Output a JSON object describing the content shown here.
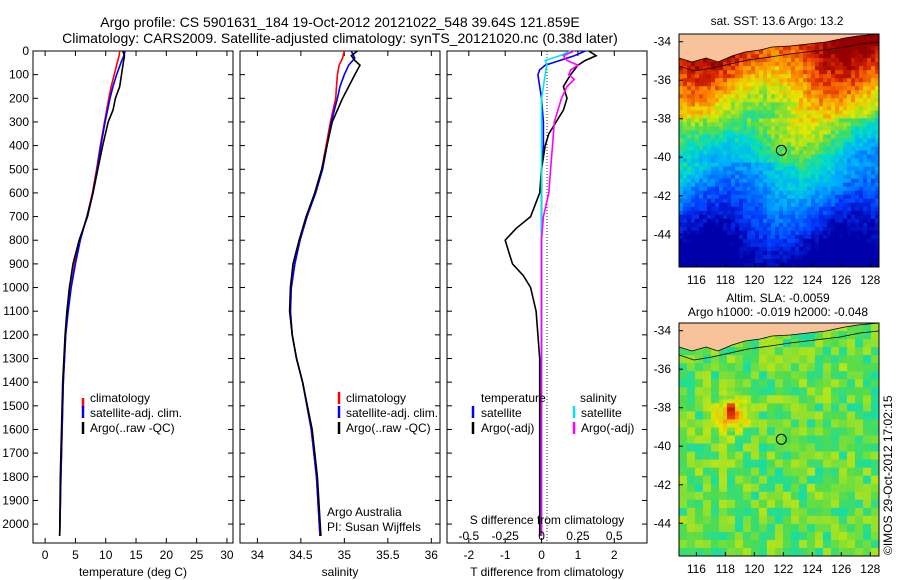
{
  "title_line1": "Argo profile: CS 5901631_184 19-Oct-2012 20121022_548 39.64S 121.859E",
  "title_line2": "Climatology: CARS2009. Satellite-adjusted climatology: synTS_20121020.nc (0.38d later)",
  "colors": {
    "climatology": "#ff0000",
    "satellite": "#0000ff",
    "argo": "#000000",
    "sat_s": "#00e5ee",
    "argo_s": "#ff00ff",
    "land": "#f8c29a"
  },
  "chart_data": [
    {
      "id": "temperature",
      "type": "line",
      "xlabel": "temperature (deg C)",
      "xlim": [
        -2,
        31
      ],
      "xticks": [
        0,
        5,
        10,
        15,
        20,
        25,
        30
      ],
      "ylim": [
        2080,
        0
      ],
      "yticks": [
        0,
        100,
        200,
        300,
        400,
        500,
        600,
        700,
        800,
        900,
        1000,
        1100,
        1200,
        1300,
        1400,
        1500,
        1600,
        1700,
        1800,
        1900,
        2000
      ],
      "legend": [
        "climatology",
        "satellite-adj. clim.",
        "Argo(..raw -QC)"
      ],
      "series": [
        {
          "name": "climatology",
          "color": "#ff0000",
          "y": [
            0,
            20,
            50,
            100,
            150,
            200,
            300,
            400,
            500,
            600,
            700,
            800,
            900,
            1000,
            1100,
            1200,
            1300,
            1400,
            1600,
            1800,
            2050
          ],
          "x": [
            12.3,
            12.2,
            11.9,
            11.4,
            10.9,
            10.5,
            9.8,
            9.1,
            8.5,
            7.8,
            6.9,
            5.7,
            4.9,
            4.2,
            3.7,
            3.4,
            3.2,
            3.0,
            2.8,
            2.6,
            2.4
          ]
        },
        {
          "name": "satellite-adj. clim.",
          "color": "#0000ff",
          "y": [
            0,
            20,
            50,
            100,
            150,
            200,
            300,
            400,
            500,
            600,
            700,
            800,
            900,
            1000,
            1100,
            1200,
            1300,
            1400,
            1600,
            1800,
            2050
          ],
          "x": [
            13.2,
            13.0,
            12.5,
            11.8,
            11.2,
            10.7,
            9.9,
            9.2,
            8.6,
            7.9,
            6.9,
            5.8,
            5.0,
            4.3,
            3.8,
            3.4,
            3.2,
            3.0,
            2.8,
            2.6,
            2.4
          ]
        },
        {
          "name": "Argo(..raw -QC)",
          "color": "#000000",
          "y": [
            0,
            20,
            50,
            100,
            150,
            200,
            250,
            300,
            400,
            500,
            600,
            700,
            800,
            900,
            1000,
            1100,
            1200,
            1300,
            1400,
            1600,
            1800,
            2050
          ],
          "x": [
            12.8,
            13.1,
            12.9,
            12.6,
            12.3,
            11.6,
            11.2,
            10.4,
            9.5,
            8.7,
            7.9,
            7.0,
            5.6,
            4.6,
            4.0,
            3.6,
            3.3,
            3.1,
            2.9,
            2.7,
            2.5,
            2.4
          ]
        }
      ]
    },
    {
      "id": "salinity",
      "type": "line",
      "xlabel": "salinity",
      "xlim": [
        33.8,
        36.1
      ],
      "xticks": [
        34,
        34.5,
        35,
        35.5,
        36
      ],
      "ylim": [
        2080,
        0
      ],
      "legend": [
        "climatology",
        "satellite-adj. clim.",
        "Argo(..raw -QC)"
      ],
      "annotation": [
        "Argo Australia",
        "PI: Susan Wijffels"
      ],
      "series": [
        {
          "name": "climatology",
          "color": "#ff0000",
          "y": [
            0,
            30,
            60,
            100,
            150,
            200,
            300,
            400,
            500,
            600,
            700,
            800,
            900,
            1000,
            1100,
            1200,
            1300,
            1400,
            1600,
            1800,
            2050
          ],
          "x": [
            35.0,
            34.98,
            34.94,
            34.92,
            34.91,
            34.9,
            34.84,
            34.79,
            34.74,
            34.66,
            34.57,
            34.49,
            34.43,
            34.39,
            34.38,
            34.4,
            34.45,
            34.52,
            34.62,
            34.68,
            34.72
          ]
        },
        {
          "name": "satellite-adj. clim.",
          "color": "#0000ff",
          "y": [
            0,
            30,
            60,
            100,
            150,
            200,
            300,
            400,
            500,
            600,
            700,
            800,
            900,
            1000,
            1100,
            1200,
            1300,
            1400,
            1600,
            1800,
            2050
          ],
          "x": [
            35.08,
            35.12,
            35.05,
            35.0,
            34.95,
            34.92,
            34.85,
            34.8,
            34.75,
            34.67,
            34.57,
            34.49,
            34.43,
            34.39,
            34.38,
            34.4,
            34.45,
            34.52,
            34.62,
            34.68,
            34.72
          ]
        },
        {
          "name": "Argo(..raw -QC)",
          "color": "#000000",
          "y": [
            0,
            20,
            40,
            60,
            80,
            100,
            150,
            200,
            250,
            300,
            400,
            500,
            600,
            700,
            800,
            900,
            1000,
            1100,
            1200,
            1300,
            1400,
            1600,
            1800,
            2050
          ],
          "x": [
            35.15,
            35.08,
            35.12,
            35.18,
            35.15,
            35.12,
            35.05,
            34.98,
            34.92,
            34.86,
            34.8,
            34.74,
            34.66,
            34.56,
            34.48,
            34.41,
            34.38,
            34.37,
            34.4,
            34.45,
            34.52,
            34.63,
            34.69,
            34.73
          ]
        }
      ]
    },
    {
      "id": "difference",
      "type": "line",
      "xlabel": "T difference from climatology",
      "xlabel_top": "S difference from climatology",
      "xlim": [
        -2.6,
        2.9
      ],
      "xticks": [
        -2,
        -1,
        0,
        1,
        2
      ],
      "top_ticks": [
        "-0.5",
        "-0.25",
        "0",
        "0.25",
        "0.5"
      ],
      "ylim": [
        2080,
        0
      ],
      "legend_headers": [
        "temperature",
        "salinity"
      ],
      "legend": [
        "satellite",
        "Argo(-adj)",
        "satellite",
        "Argo(-adj)"
      ],
      "series": [
        {
          "name": "T satellite",
          "color": "#0000ff",
          "y": [
            0,
            20,
            40,
            60,
            80,
            100,
            150,
            200,
            300,
            400,
            500,
            600,
            700,
            800,
            900,
            1000,
            1200,
            1500,
            1800,
            2050
          ],
          "x": [
            1.2,
            0.9,
            0.5,
            0.1,
            -0.05,
            -0.1,
            -0.05,
            0.0,
            0.05,
            0.05,
            0.0,
            0.0,
            0.0,
            0.0,
            0.0,
            0.0,
            0.0,
            0.0,
            0.0,
            0.0
          ]
        },
        {
          "name": "T Argo(-adj)",
          "color": "#000000",
          "y": [
            0,
            20,
            40,
            60,
            80,
            100,
            150,
            200,
            250,
            300,
            350,
            400,
            500,
            600,
            700,
            750,
            800,
            850,
            900,
            950,
            1000,
            1100,
            1200,
            1300,
            1500,
            1800,
            2050
          ],
          "x": [
            1.3,
            1.5,
            1.2,
            1.0,
            0.9,
            0.8,
            0.6,
            0.7,
            0.6,
            0.4,
            0.2,
            0.1,
            0.0,
            -0.05,
            -0.3,
            -0.7,
            -1.0,
            -0.9,
            -0.8,
            -0.5,
            -0.3,
            -0.15,
            -0.1,
            -0.05,
            -0.05,
            -0.05,
            -0.05
          ]
        },
        {
          "name": "S satellite",
          "color": "#00e5ee",
          "y": [
            0,
            20,
            40,
            60,
            80,
            100,
            150,
            200,
            300,
            400,
            500,
            600,
            700,
            800,
            1000,
            1200,
            1500,
            1800,
            2050
          ],
          "x": [
            0.8,
            0.5,
            0.1,
            0.15,
            0.12,
            0.1,
            0.05,
            0.0,
            0.0,
            0.0,
            0.0,
            0.0,
            0.0,
            0.0,
            0.0,
            0.0,
            0.0,
            0.0,
            0.0
          ]
        },
        {
          "name": "S Argo(-adj)",
          "color": "#ff00ff",
          "y": [
            0,
            20,
            40,
            60,
            80,
            100,
            120,
            150,
            200,
            250,
            300,
            400,
            500,
            600,
            700,
            800,
            900,
            1000,
            1200,
            1500,
            1800,
            2050
          ],
          "x": [
            0.9,
            0.6,
            0.7,
            1.0,
            0.8,
            0.75,
            0.9,
            0.7,
            0.55,
            0.45,
            0.35,
            0.3,
            0.25,
            0.2,
            0.05,
            0.0,
            0.0,
            0.0,
            0.0,
            0.0,
            0.0,
            0.0
          ]
        }
      ]
    },
    {
      "id": "sst-map",
      "type": "heatmap",
      "title": "sat. SST: 13.6  Argo: 13.2",
      "xticks": [
        116,
        118,
        120,
        122,
        124,
        126,
        128
      ],
      "yticks": [
        -34,
        -36,
        -38,
        -40,
        -42,
        -44
      ],
      "xlim": [
        114.8,
        128.6
      ],
      "ylim": [
        -45.7,
        -33.6
      ],
      "marker": {
        "lon": 121.86,
        "lat": -39.64
      }
    },
    {
      "id": "sla-map",
      "type": "heatmap",
      "title_line1": "Altim. SLA: -0.0059",
      "title_line2": "Argo h1000: -0.019 h2000: -0.048",
      "xticks": [
        116,
        118,
        120,
        122,
        124,
        126,
        128
      ],
      "yticks": [
        -34,
        -36,
        -38,
        -40,
        -42,
        -44
      ],
      "xlim": [
        114.8,
        128.6
      ],
      "ylim": [
        -45.7,
        -33.6
      ],
      "marker": {
        "lon": 121.86,
        "lat": -39.64
      },
      "side_label": "©IMOS 29-Oct-2012 17:02:15"
    }
  ]
}
